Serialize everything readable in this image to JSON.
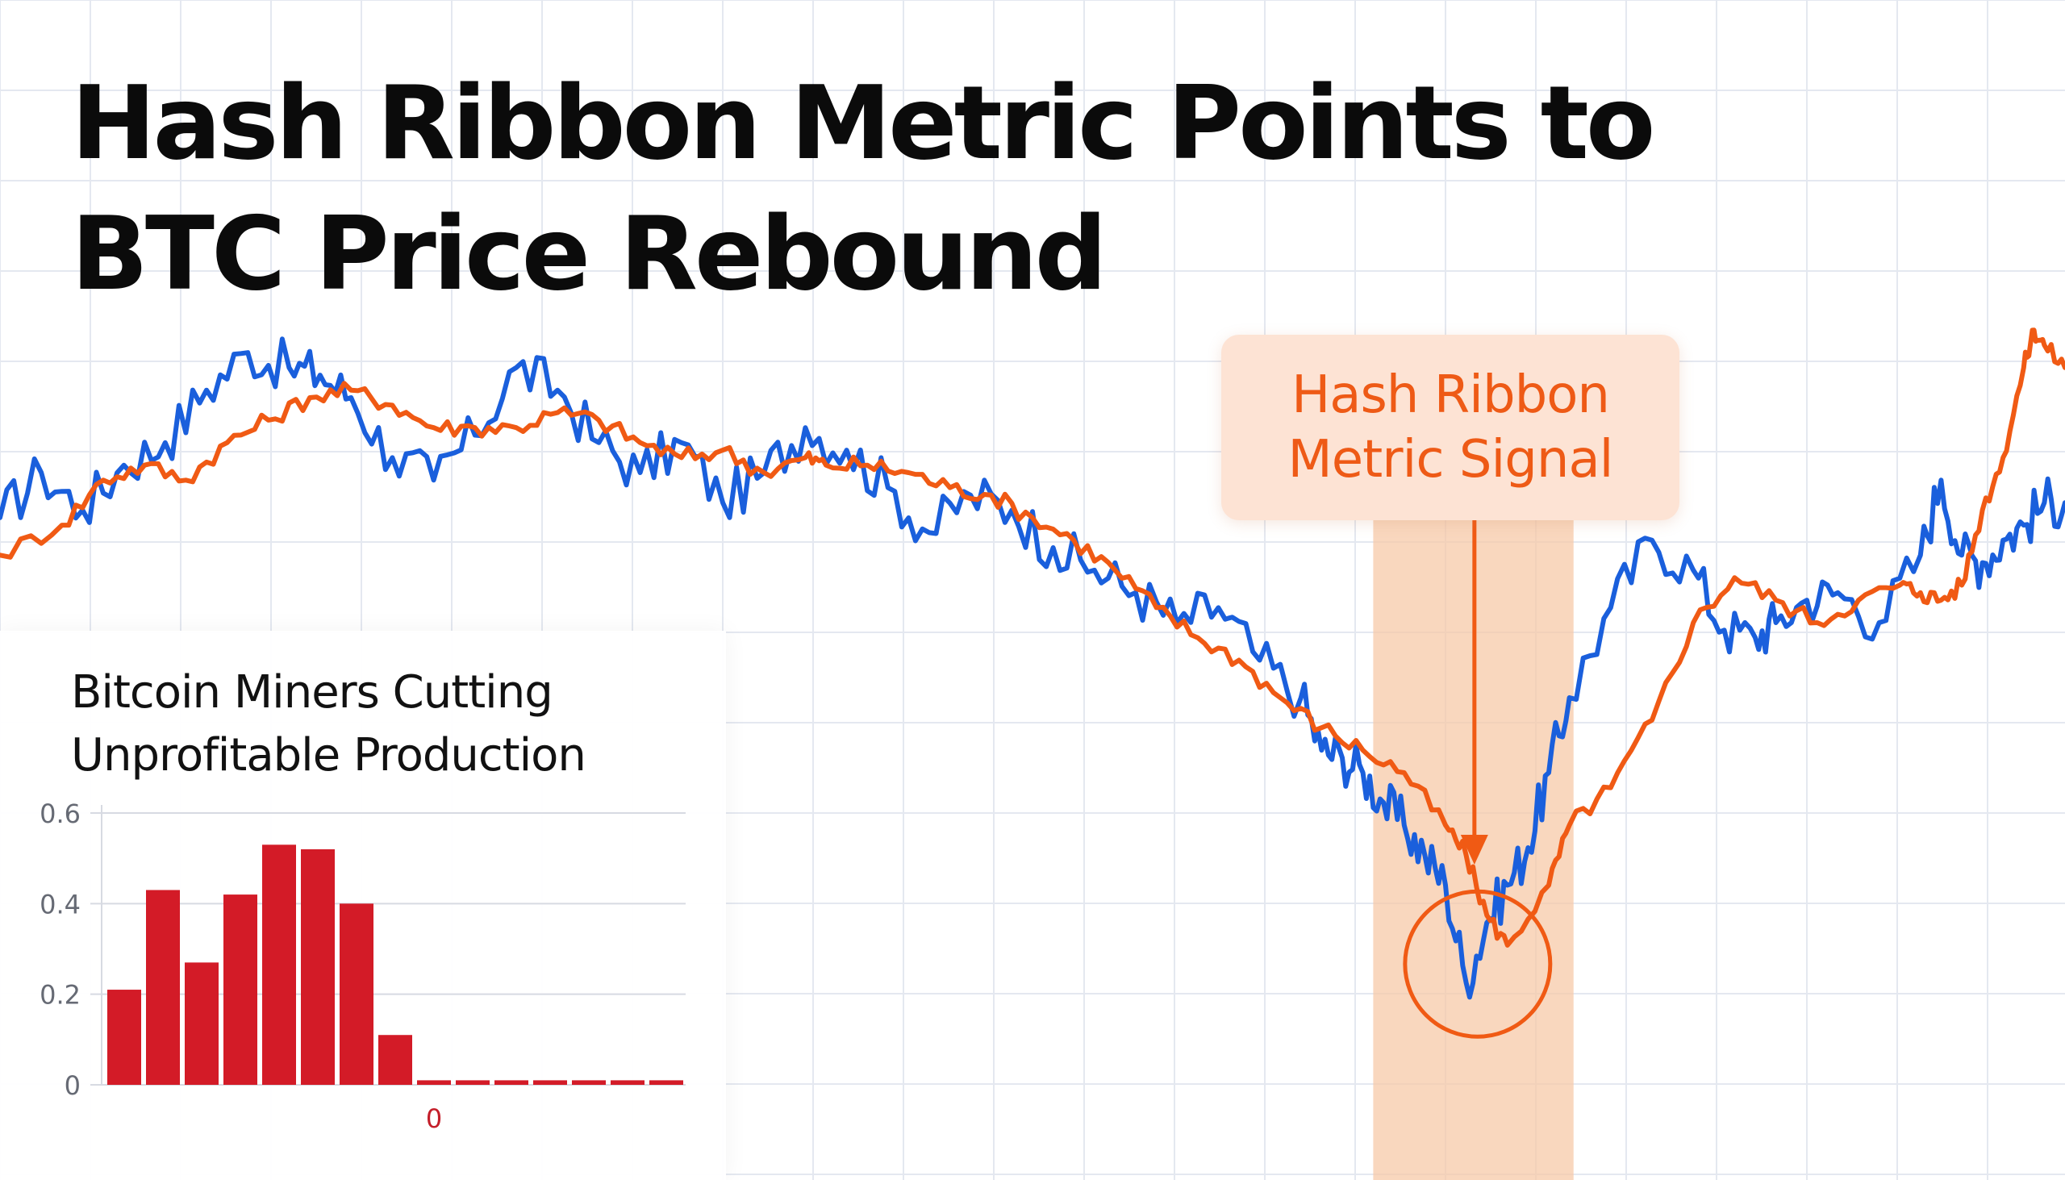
{
  "headline": {
    "line1": "Hash Ribbon Metric Points to",
    "line2": "BTC Price Rebound"
  },
  "annotation": {
    "line1": "Hash Ribbon",
    "line2": "Metric Signal"
  },
  "colors": {
    "blue_series": "#1a5fdc",
    "orange_series": "#f05a14",
    "highlight_band": "#f7c9a8",
    "bar_fill": "#d31b27",
    "annotation_text": "#ee5a16",
    "headline_text": "#0b0b0b"
  },
  "chart_data": [
    {
      "type": "line",
      "title": "",
      "xlabel": "",
      "ylabel": "",
      "x_range": [
        0,
        100
      ],
      "y_range": [
        0,
        100
      ],
      "grid": true,
      "highlight_region": {
        "x_start": 66.5,
        "x_end": 76.2
      },
      "signal_point": {
        "x": 71.4,
        "y": 17.5
      },
      "series": [
        {
          "name": "blue",
          "color": "#1a5fdc",
          "x": [
            0,
            2,
            4,
            6,
            8,
            10,
            12,
            14,
            15.5,
            17,
            19,
            21,
            23,
            25,
            27,
            29,
            31,
            33,
            35,
            37,
            39,
            41,
            43,
            45,
            47,
            49,
            51,
            53,
            55,
            57,
            59,
            61,
            63,
            64,
            65,
            66,
            67,
            68,
            69,
            70,
            71,
            72,
            73,
            74,
            75,
            76,
            78,
            80,
            82,
            83.5,
            85,
            86,
            87.5,
            89,
            91,
            93,
            94,
            95,
            96,
            97,
            98,
            99,
            100
          ],
          "y": [
            74,
            80,
            75,
            81,
            84,
            91,
            96,
            94,
            93,
            90,
            82,
            79,
            85,
            94,
            91,
            84,
            80,
            84,
            76,
            80,
            86,
            83,
            78,
            72,
            77,
            75,
            70,
            67,
            64,
            60,
            62,
            55,
            50,
            43,
            42,
            40,
            36,
            33,
            29,
            25,
            12,
            20,
            25,
            30,
            40,
            50,
            62,
            71,
            67,
            59,
            58,
            60,
            63,
            64,
            60,
            69,
            79,
            69,
            68,
            71,
            73,
            76,
            76
          ]
        },
        {
          "name": "orange",
          "color": "#f05a14",
          "x": [
            0,
            3,
            5,
            7,
            9,
            11,
            13,
            15,
            17,
            19,
            21,
            23,
            25,
            27,
            29,
            31,
            33,
            35,
            37,
            39,
            40,
            42,
            44,
            46,
            48,
            50,
            52,
            54,
            56,
            58,
            60,
            62,
            64,
            66,
            68,
            70,
            71,
            72,
            73,
            75,
            76,
            78,
            80,
            82,
            84,
            86,
            88,
            90,
            92,
            93,
            94,
            95,
            96,
            97,
            98,
            98.5,
            99,
            100
          ],
          "y": [
            69,
            73,
            79,
            81,
            79,
            84,
            87,
            90,
            91,
            89,
            86,
            86,
            86,
            88,
            87,
            84,
            82,
            83,
            80,
            82,
            81,
            81,
            80,
            78,
            77,
            74,
            71,
            67,
            62,
            58,
            55,
            50,
            46,
            43,
            40,
            33,
            29,
            21,
            17,
            25,
            33,
            38,
            47,
            60,
            66,
            63,
            60,
            63,
            65,
            64,
            63,
            65,
            75,
            82,
            94,
            99,
            97,
            94
          ]
        }
      ]
    },
    {
      "type": "bar",
      "title": "Bitcoin Miners Cutting Unprofitable Production",
      "xlabel": "",
      "ylabel": "",
      "ylim": [
        0,
        0.6
      ],
      "y_ticks": [
        "0.6",
        "0.4",
        "0.2",
        "0"
      ],
      "y_tick_values": [
        0.6,
        0.4,
        0.2,
        0
      ],
      "x_tick_labels": [
        "0"
      ],
      "x_tick_bar_index": 8,
      "grid": true,
      "values": [
        0.21,
        0.43,
        0.27,
        0.42,
        0.53,
        0.52,
        0.4,
        0.11,
        0.01,
        0.01,
        0.01,
        0.01,
        0.01,
        0.01,
        0.01
      ]
    }
  ]
}
